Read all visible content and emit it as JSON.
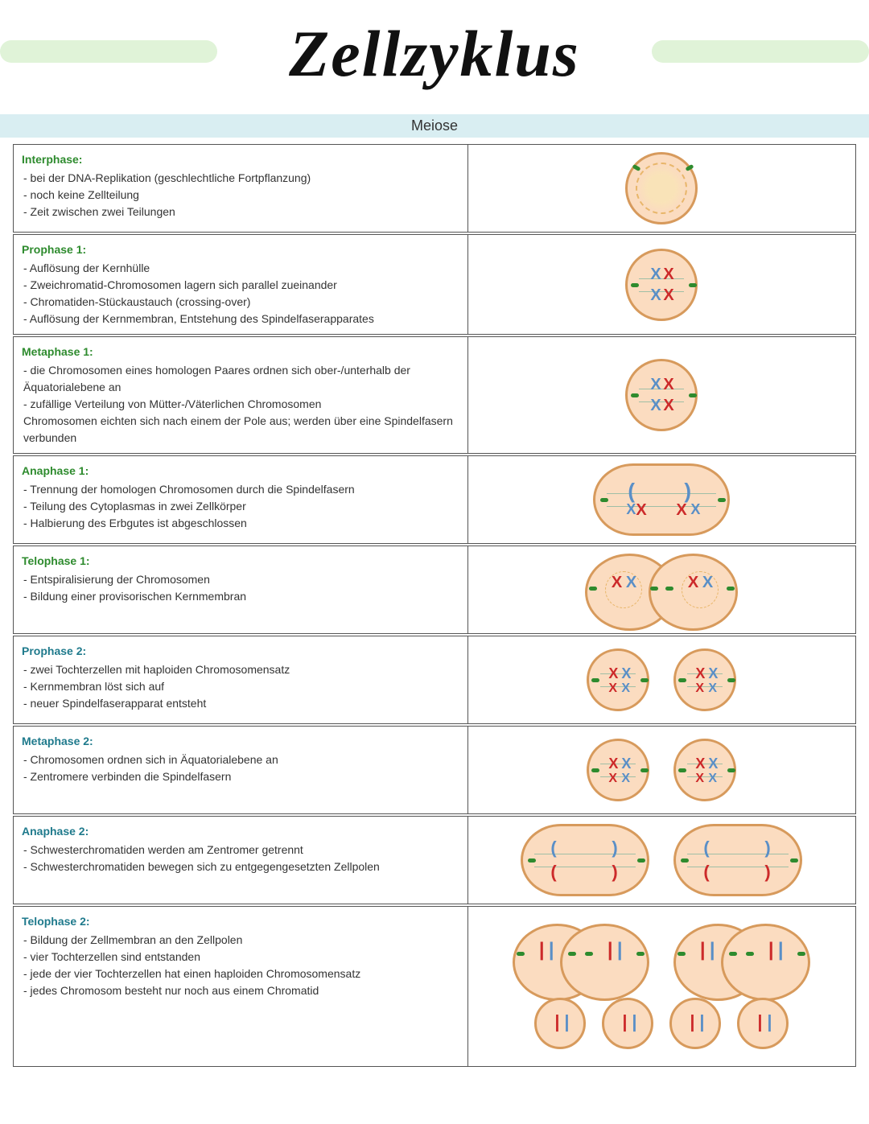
{
  "title": "Zellzyklus",
  "subtitle": "Meiose",
  "colors": {
    "title_bar": "#e0f3d8",
    "subtitle_bar": "#d9eef2",
    "cell_border": "#d79a5c",
    "cell_fill": "#fbdcc0",
    "chrom_red": "#cc2a2a",
    "chrom_blue": "#5a8fc7",
    "centriole": "#2e8b2e",
    "grid_border": "#555555",
    "heading_green": "#2e8b2e",
    "heading_teal": "#1f7a8c"
  },
  "typography": {
    "title_fontsize": 82,
    "body_fontsize": 14,
    "subtitle_fontsize": 18
  },
  "phases": [
    {
      "heading": "Interphase:",
      "heading_color": "#2e8b2e",
      "bullets": [
        "- bei der DNA-Replikation (geschlechtliche Fortpflanzung)",
        "- noch keine Zellteilung",
        "- Zeit zwischen zwei Teilungen"
      ],
      "diagram": "interphase"
    },
    {
      "heading": "Prophase 1:",
      "heading_color": "#2e8b2e",
      "bullets": [
        "- Auflösung der Kernhülle",
        "- Zweichromatid-Chromosomen lagern sich parallel zueinander",
        "- Chromatiden-Stückaustauch (crossing-over)",
        "- Auflösung der Kernmembran, Entstehung des Spindelfaserapparates"
      ],
      "diagram": "prophase1"
    },
    {
      "heading": "Metaphase 1:",
      "heading_color": "#2e8b2e",
      "bullets": [
        "- die Chromosomen eines homologen Paares ordnen sich ober-/unterhalb der Äquatorialebene an",
        "- zufällige Verteilung von Mütter-/Väterlichen Chromosomen",
        "Chromosomen eichten sich nach einem der Pole aus; werden über eine Spindelfasern verbunden"
      ],
      "diagram": "metaphase1"
    },
    {
      "heading": "Anaphase 1:",
      "heading_color": "#2e8b2e",
      "bullets": [
        "- Trennung der homologen Chromosomen durch die Spindelfasern",
        "- Teilung des Cytoplasmas in zwei Zellkörper",
        "- Halbierung des Erbgutes ist abgeschlossen"
      ],
      "diagram": "anaphase1"
    },
    {
      "heading": "Telophase 1:",
      "heading_color": "#2e8b2e",
      "bullets": [
        "- Entspiralisierung der Chromosomen",
        "- Bildung einer provisorischen Kernmembran"
      ],
      "diagram": "telophase1"
    },
    {
      "heading": "Prophase 2:",
      "heading_color": "#1f7a8c",
      "bullets": [
        "- zwei Tochterzellen mit haploiden Chromosomensatz",
        "- Kernmembran löst sich auf",
        "- neuer Spindelfaserapparat entsteht"
      ],
      "diagram": "prophase2"
    },
    {
      "heading": "Metaphase 2:",
      "heading_color": "#1f7a8c",
      "bullets": [
        "- Chromosomen ordnen sich in Äquatorialebene an",
        "- Zentromere verbinden die Spindelfasern"
      ],
      "diagram": "metaphase2"
    },
    {
      "heading": "Anaphase 2:",
      "heading_color": "#1f7a8c",
      "bullets": [
        "- Schwesterchromatiden werden am Zentromer getrennt",
        "- Schwesterchromatiden bewegen sich zu entgegengesetzten Zellpolen"
      ],
      "diagram": "anaphase2"
    },
    {
      "heading": "Telophase 2:",
      "heading_color": "#1f7a8c",
      "bullets": [
        "- Bildung der Zellmembran an den Zellpolen",
        "- vier Tochterzellen sind entstanden",
        "- jede der vier Tochterzellen hat einen haploiden Chromosomensatz",
        "- jedes Chromosom besteht nur noch aus einem Chromatid"
      ],
      "diagram": "telophase2"
    }
  ]
}
